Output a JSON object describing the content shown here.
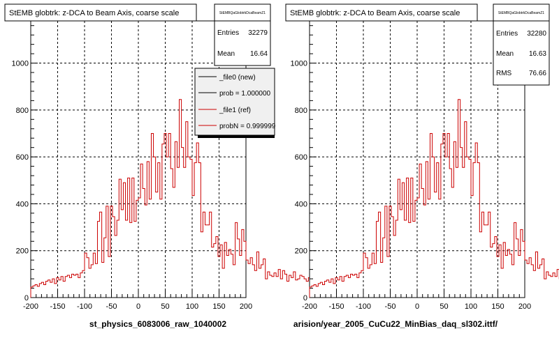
{
  "chart_data": [
    {
      "type": "histogram",
      "title": "StEMB globtrk: z-DCA to Beam Axis, coarse scale",
      "xlabel": "st_physics_6083006_raw_1040002",
      "xlim": [
        -200,
        200
      ],
      "ylim": [
        0,
        1180
      ],
      "x_ticks": [
        -200,
        -150,
        -100,
        -50,
        0,
        50,
        100,
        150,
        200
      ],
      "y_ticks": [
        0,
        200,
        400,
        600,
        800,
        1000
      ],
      "grid": true,
      "stats": {
        "name": "StEMBQaGlobtrkDcaBeamZ1",
        "rows": [
          {
            "label": "Entries",
            "value": "32279"
          },
          {
            "label": "Mean",
            "value": "16.64"
          }
        ]
      },
      "legend": {
        "position": "top-right",
        "entries": [
          {
            "label": "_file0 (new)",
            "color": "#000000"
          },
          {
            "label": "prob = 1.000000",
            "color": "#000000"
          },
          {
            "label": "_file1 (ref)",
            "color": "#cc0000"
          },
          {
            "label": "probN = 0.999999",
            "color": "#cc0000"
          }
        ]
      },
      "bin_width": 4,
      "x_start": -200,
      "series": [
        {
          "color": "#cc0000",
          "values": [
            45,
            50,
            55,
            48,
            60,
            65,
            55,
            70,
            75,
            65,
            80,
            60,
            85,
            75,
            90,
            70,
            90,
            95,
            85,
            100,
            95,
            100,
            85,
            105,
            115,
            190,
            170,
            125,
            140,
            190,
            145,
            325,
            365,
            150,
            255,
            390,
            175,
            390,
            345,
            265,
            330,
            505,
            375,
            490,
            330,
            510,
            320,
            510,
            325,
            415,
            425,
            570,
            465,
            395,
            580,
            420,
            700,
            600,
            450,
            575,
            420,
            655,
            700,
            600,
            700,
            550,
            470,
            665,
            555,
            845,
            640,
            555,
            750,
            600,
            590,
            435,
            575,
            660,
            575,
            280,
            365,
            310,
            310,
            365,
            215,
            230,
            260,
            175,
            225,
            125,
            235,
            180,
            205,
            185,
            140,
            320,
            250,
            180,
            290,
            240,
            160,
            145,
            170,
            140,
            115,
            195,
            125,
            140,
            165,
            80,
            110,
            95,
            90,
            105,
            90,
            120,
            80,
            115,
            100,
            70,
            95,
            85,
            110,
            75,
            80,
            95,
            90,
            80,
            70,
            85,
            75,
            110,
            90,
            75,
            100,
            85,
            75,
            80,
            65,
            95,
            85,
            70,
            90,
            75,
            80,
            95,
            70,
            75,
            60,
            90,
            80,
            70,
            85,
            80,
            70,
            75,
            60,
            80,
            75,
            85,
            65,
            75,
            55,
            80,
            50,
            70,
            55,
            65,
            45,
            85,
            80,
            85,
            90,
            75,
            70,
            95,
            100,
            85,
            100,
            90,
            115,
            100,
            125,
            120,
            135,
            145,
            160,
            175,
            195,
            200,
            220,
            250,
            280
          ]
        }
      ]
    },
    {
      "type": "histogram",
      "title": "StEMB globtrk: z-DCA to Beam Axis, coarse scale",
      "xlabel": "arision/year_2005_CuCu22_MinBias_daq_sl302.ittf/",
      "xlim": [
        -200,
        200
      ],
      "ylim": [
        0,
        1180
      ],
      "x_ticks": [
        -200,
        -150,
        -100,
        -50,
        0,
        50,
        100,
        150,
        200
      ],
      "y_ticks": [
        0,
        200,
        400,
        600,
        800,
        1000
      ],
      "grid": true,
      "stats": {
        "name": "StEMBQaGlobtrkDcaBeamZ1",
        "rows": [
          {
            "label": "Entries",
            "value": "32280"
          },
          {
            "label": "Mean",
            "value": "16.63"
          },
          {
            "label": "RMS",
            "value": "76.66"
          }
        ]
      },
      "bin_width": 4,
      "x_start": -200,
      "series": [
        {
          "color": "#cc0000",
          "values": [
            45,
            50,
            55,
            48,
            60,
            65,
            55,
            70,
            75,
            65,
            80,
            60,
            85,
            75,
            90,
            70,
            90,
            95,
            85,
            100,
            95,
            100,
            85,
            105,
            115,
            190,
            170,
            125,
            140,
            190,
            145,
            325,
            365,
            150,
            255,
            390,
            175,
            390,
            345,
            265,
            330,
            505,
            375,
            490,
            330,
            510,
            320,
            510,
            325,
            415,
            425,
            570,
            465,
            395,
            580,
            420,
            700,
            600,
            450,
            575,
            420,
            655,
            700,
            600,
            700,
            550,
            470,
            665,
            555,
            845,
            640,
            555,
            750,
            600,
            590,
            435,
            575,
            660,
            575,
            280,
            365,
            310,
            310,
            365,
            215,
            230,
            260,
            175,
            225,
            125,
            235,
            180,
            205,
            185,
            140,
            320,
            250,
            180,
            290,
            240,
            160,
            145,
            170,
            140,
            115,
            195,
            125,
            140,
            165,
            80,
            110,
            95,
            90,
            105,
            90,
            120,
            80,
            115,
            100,
            70,
            95,
            85,
            110,
            75,
            80,
            95,
            90,
            80,
            70,
            85,
            75,
            110,
            90,
            75,
            100,
            85,
            75,
            80,
            65,
            95,
            85,
            70,
            90,
            75,
            80,
            95,
            70,
            75,
            60,
            90,
            80,
            70,
            85,
            80,
            70,
            75,
            60,
            80,
            75,
            85,
            65,
            75,
            55,
            80,
            50,
            70,
            55,
            65,
            45,
            85,
            80,
            85,
            90,
            75,
            70,
            95,
            100,
            85,
            100,
            90,
            115,
            100,
            125,
            120,
            135,
            145,
            160,
            175,
            195,
            200,
            220,
            250,
            280
          ]
        }
      ]
    }
  ]
}
